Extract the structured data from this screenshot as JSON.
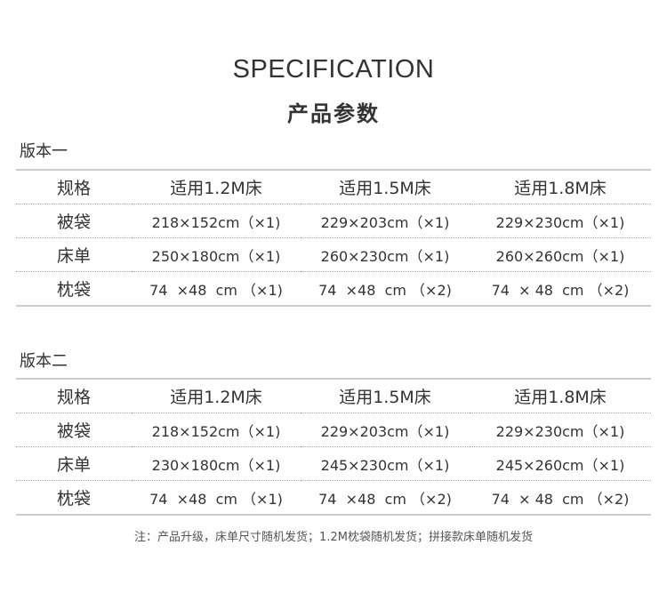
{
  "title_en": "SPECIFICATION",
  "title_cn": "产品参数",
  "versions": [
    {
      "label": "版本一",
      "header": [
        "规格",
        "适用1.2M床",
        "适用1.5M床",
        "适用1.8M床"
      ],
      "rows": [
        [
          "被袋",
          "218×152cm（×1)",
          "229×203cm（×1)",
          "229×230cm（×1)"
        ],
        [
          "床单",
          "250×180cm（×1)",
          "260×230cm（×1)",
          "260×260cm（×1)"
        ],
        [
          "枕袋",
          "74  ×48  cm （×1)",
          "74  ×48  cm （×2)",
          "74  × 48  cm （×2)"
        ]
      ]
    },
    {
      "label": "版本二",
      "header": [
        "规格",
        "适用1.2M床",
        "适用1.5M床",
        "适用1.8M床"
      ],
      "rows": [
        [
          "被袋",
          "218×152cm（×1)",
          "229×203cm（×1)",
          "229×230cm（×1)"
        ],
        [
          "床单",
          "230×180cm（×1)",
          "245×230cm（×1)",
          "245×260cm（×1)"
        ],
        [
          "枕袋",
          "74  ×48  cm （×1)",
          "74  ×48  cm （×2)",
          "74  × 48  cm （×2)"
        ]
      ]
    }
  ],
  "note": "注：产品升级，床单尺寸随机发货；1.2M枕袋随机发货；拼接款床单随机发货"
}
